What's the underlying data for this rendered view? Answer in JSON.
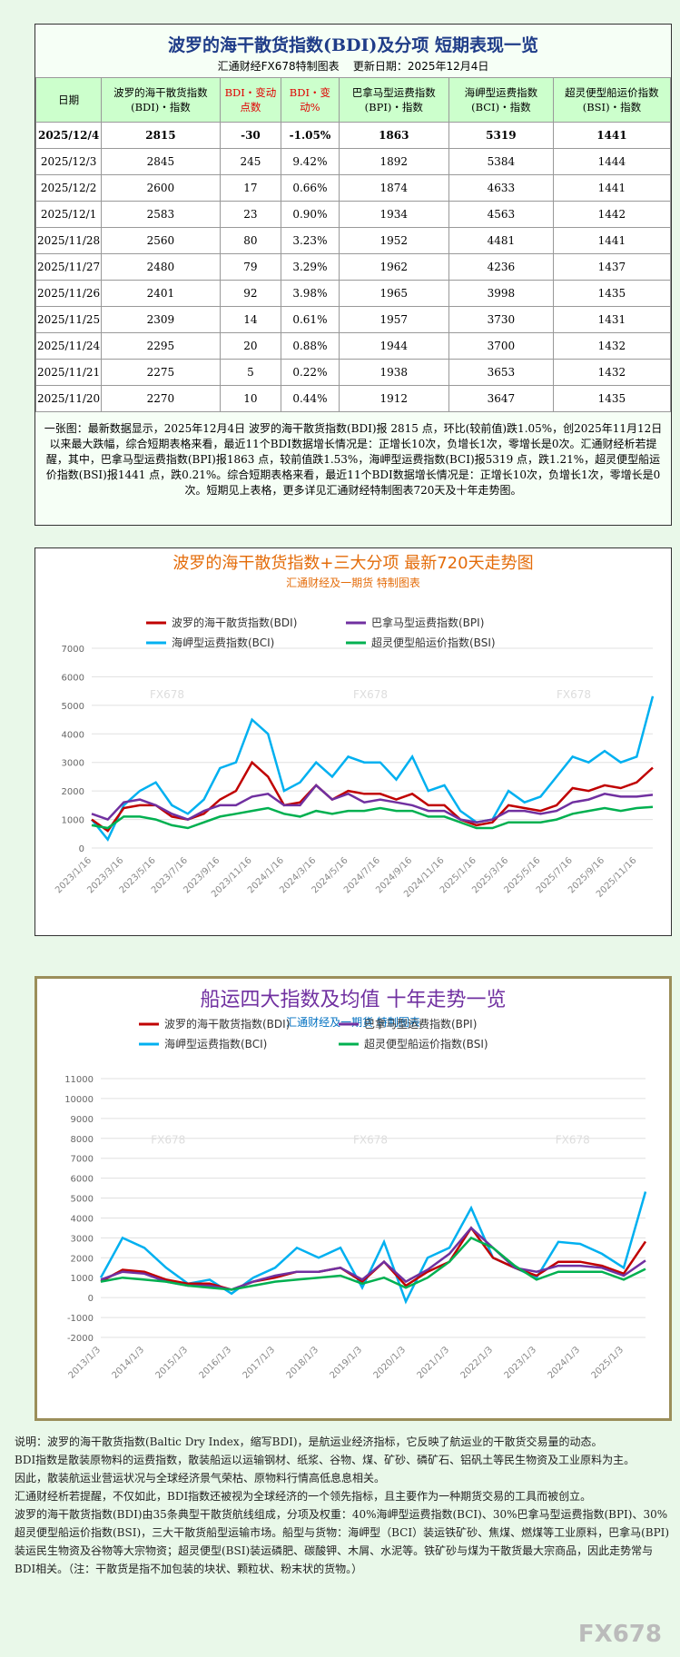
{
  "table": {
    "title": "波罗的海干散货指数(BDI)及分项 短期表现一览",
    "subtitle": "汇通财经FX678特制图表",
    "update": "更新日期：2025年12月4日",
    "headers": [
      "日期",
      "波罗的海干散货指数(BDI)・指数",
      "BDI・变动点数",
      "BDI・变动%",
      "巴拿马型运费指数(BPI)・指数",
      "海岬型运费指数(BCI)・指数",
      "超灵便型船运价指数(BSI)・指数"
    ],
    "rows": [
      [
        "2025/12/4",
        "2815",
        "-30",
        "-1.05%",
        "1863",
        "5319",
        "1441"
      ],
      [
        "2025/12/3",
        "2845",
        "245",
        "9.42%",
        "1892",
        "5384",
        "1444"
      ],
      [
        "2025/12/2",
        "2600",
        "17",
        "0.66%",
        "1874",
        "4633",
        "1441"
      ],
      [
        "2025/12/1",
        "2583",
        "23",
        "0.90%",
        "1934",
        "4563",
        "1442"
      ],
      [
        "2025/11/28",
        "2560",
        "80",
        "3.23%",
        "1952",
        "4481",
        "1441"
      ],
      [
        "2025/11/27",
        "2480",
        "79",
        "3.29%",
        "1962",
        "4236",
        "1437"
      ],
      [
        "2025/11/26",
        "2401",
        "92",
        "3.98%",
        "1965",
        "3998",
        "1435"
      ],
      [
        "2025/11/25",
        "2309",
        "14",
        "0.61%",
        "1957",
        "3730",
        "1431"
      ],
      [
        "2025/11/24",
        "2295",
        "20",
        "0.88%",
        "1944",
        "3700",
        "1432"
      ],
      [
        "2025/11/21",
        "2275",
        "5",
        "0.22%",
        "1938",
        "3653",
        "1432"
      ],
      [
        "2025/11/20",
        "2270",
        "10",
        "0.44%",
        "1912",
        "3647",
        "1435"
      ]
    ],
    "summary": "一张图：最新数据显示，2025年12月4日 波罗的海干散货指数(BDI)报 2815 点，环比(较前值)跌1.05%，创2025年11月12日以来最大跌幅，综合短期表格来看，最近11个BDI数据增长情况是：正增长10次，负增长1次，零增长是0次。汇通财经析若提醒，其中，巴拿马型运费指数(BPI)报1863 点，较前值跌1.53%，海岬型运费指数(BCI)报5319 点，跌1.21%，超灵便型船运价指数(BSI)报1441 点，跌0.21%。综合短期表格来看，最近11个BDI数据增长情况是：正增长10次，负增长1次，零增长是0次。短期见上表格，更多详见汇通财经特制图表720天及十年走势图。"
  },
  "chart_data": [
    {
      "type": "line",
      "title": "波罗的海干散货指数+三大分项  最新720天走势图",
      "subtitle": "汇通财经及一期货 特制图表",
      "categories": [
        "2023/1/16",
        null,
        "2023/3/16",
        null,
        "2023/5/16",
        null,
        "2023/7/16",
        null,
        "2023/9/16",
        null,
        "2023/11/16",
        null,
        "2024/1/16",
        null,
        "2024/3/16",
        null,
        "2024/5/16",
        null,
        "2024/7/16",
        null,
        "2024/9/16",
        null,
        "2024/11/16",
        null,
        "2025/1/16",
        null,
        "2025/3/16",
        null,
        "2025/5/16",
        null,
        "2025/7/16",
        null,
        "2025/9/16",
        null,
        "2025/11/16",
        null
      ],
      "ylim": [
        0,
        7000
      ],
      "yticks": [
        0,
        1000,
        2000,
        3000,
        4000,
        5000,
        6000,
        7000
      ],
      "grid": true,
      "series": [
        {
          "name": "波罗的海干散货指数(BDI)",
          "color": "#c00000",
          "values": [
            1000,
            600,
            1400,
            1500,
            1500,
            1100,
            1000,
            1200,
            1700,
            2000,
            3000,
            2500,
            1500,
            1600,
            2200,
            1700,
            2000,
            1900,
            1900,
            1700,
            1900,
            1500,
            1500,
            1000,
            800,
            900,
            1500,
            1400,
            1300,
            1500,
            2100,
            2000,
            2200,
            2100,
            2300,
            2815
          ]
        },
        {
          "name": "巴拿马型运费指数(BPI)",
          "color": "#7030a0",
          "values": [
            1200,
            1000,
            1600,
            1700,
            1500,
            1200,
            1000,
            1300,
            1500,
            1500,
            1800,
            1900,
            1500,
            1500,
            2200,
            1700,
            1900,
            1600,
            1700,
            1600,
            1500,
            1300,
            1300,
            1000,
            900,
            1000,
            1300,
            1300,
            1200,
            1300,
            1600,
            1700,
            1900,
            1800,
            1800,
            1863
          ]
        },
        {
          "name": "海岬型运费指数(BCI)",
          "color": "#00b0f0",
          "values": [
            1000,
            300,
            1500,
            2000,
            2300,
            1500,
            1200,
            1700,
            2800,
            3000,
            4500,
            4000,
            2000,
            2300,
            3000,
            2500,
            3200,
            3000,
            3000,
            2400,
            3200,
            2000,
            2200,
            1300,
            900,
            1000,
            2000,
            1600,
            1800,
            2500,
            3200,
            3000,
            3400,
            3000,
            3200,
            5319
          ]
        },
        {
          "name": "超灵便型船运价指数(BSI)",
          "color": "#00b050",
          "values": [
            800,
            700,
            1100,
            1100,
            1000,
            800,
            700,
            900,
            1100,
            1200,
            1300,
            1400,
            1200,
            1100,
            1300,
            1200,
            1300,
            1300,
            1400,
            1300,
            1300,
            1100,
            1100,
            900,
            700,
            700,
            900,
            900,
            900,
            1000,
            1200,
            1300,
            1400,
            1300,
            1400,
            1441
          ]
        }
      ]
    },
    {
      "type": "line",
      "title": "船运四大指数及均值 十年走势一览",
      "subtitle": "汇通财经及一期货 特制图表",
      "categories": [
        "2013/1/3",
        null,
        "2014/1/3",
        null,
        "2015/1/3",
        null,
        "2016/1/3",
        null,
        "2017/1/3",
        null,
        "2018/1/3",
        null,
        "2019/1/3",
        null,
        "2020/1/3",
        null,
        "2021/1/3",
        null,
        "2022/1/3",
        null,
        "2023/1/3",
        null,
        "2024/1/3",
        null,
        "2025/1/3",
        null
      ],
      "ylim": [
        -2000,
        11000
      ],
      "yticks": [
        -2000,
        -1000,
        0,
        1000,
        2000,
        3000,
        4000,
        5000,
        6000,
        7000,
        8000,
        9000,
        10000,
        11000
      ],
      "grid": true,
      "series": [
        {
          "name": "波罗的海干散货指数(BDI)",
          "color": "#c00000",
          "values": [
            800,
            1400,
            1300,
            900,
            700,
            700,
            400,
            800,
            1000,
            1300,
            1300,
            1500,
            800,
            1800,
            600,
            1300,
            1800,
            3500,
            2000,
            1500,
            1100,
            1800,
            1800,
            1600,
            1200,
            2815
          ]
        },
        {
          "name": "巴拿马型运费指数(BPI)",
          "color": "#7030a0",
          "values": [
            900,
            1300,
            1200,
            800,
            600,
            600,
            400,
            800,
            1100,
            1300,
            1300,
            1500,
            900,
            1800,
            800,
            1400,
            2200,
            3500,
            2500,
            1500,
            1300,
            1600,
            1600,
            1500,
            1100,
            1863
          ]
        },
        {
          "name": "海岬型运费指数(BCI)",
          "color": "#00b0f0",
          "values": [
            1000,
            3000,
            2500,
            1500,
            700,
            900,
            200,
            1000,
            1500,
            2500,
            2000,
            2500,
            500,
            2800,
            -200,
            2000,
            2500,
            4500,
            2000,
            1500,
            1000,
            2800,
            2700,
            2200,
            1500,
            5319
          ]
        },
        {
          "name": "超灵便型船运价指数(BSI)",
          "color": "#00b050",
          "values": [
            800,
            1000,
            900,
            800,
            600,
            500,
            400,
            600,
            800,
            900,
            1000,
            1100,
            700,
            1000,
            500,
            1000,
            1800,
            3000,
            2500,
            1600,
            900,
            1300,
            1300,
            1300,
            900,
            1441
          ]
        }
      ]
    }
  ],
  "notes": [
    "说明：波罗的海干散货指数(Baltic Dry Index，缩写BDI)，是航运业经济指标，它反映了航运业的干散货交易量的动态。",
    "BDI指数是散装原物料的运费指数，散装船运以运输钢材、纸浆、谷物、煤、矿砂、磷矿石、铝矾土等民生物资及工业原料为主。",
    "因此，散装航运业营运状况与全球经济景气荣枯、原物料行情高低息息相关。",
    "汇通财经析若提醒，不仅如此，BDI指数还被视为全球经济的一个领先指标，且主要作为一种期货交易的工具而被创立。",
    "波罗的海干散货指数(BDI)由35条典型干散货航线组成，分项及权重：40%海岬型运费指数(BCI)、30%巴拿马型运费指数(BPI)、30%超灵便型船运价指数(BSI)，三大干散货船型运输市场。船型与货物：海岬型（BCI）装运铁矿砂、焦煤、燃煤等工业原料，巴拿马(BPI)装运民生物资及谷物等大宗物资；超灵便型(BSI)装运磷肥、碳酸钾、木屑、水泥等。铁矿砂与煤为干散货最大宗商品，因此走势常与BDI相关。（注：干散货是指不加包装的块状、颗粒状、粉末状的货物。）"
  ],
  "watermark": "FX678"
}
